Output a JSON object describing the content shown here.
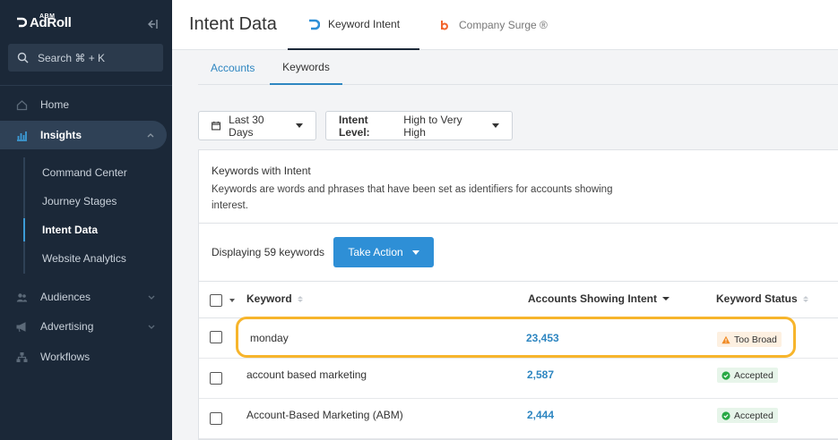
{
  "app": {
    "logo": "AdRoll",
    "logo_sub": "ABM"
  },
  "search": {
    "placeholder": "Search ⌘ + K"
  },
  "sidebar": {
    "items": [
      {
        "label": "Home",
        "icon": "home-icon"
      },
      {
        "label": "Insights",
        "icon": "insights-icon",
        "active": true
      },
      {
        "label": "Audiences",
        "icon": "audiences-icon"
      },
      {
        "label": "Advertising",
        "icon": "megaphone-icon"
      },
      {
        "label": "Workflows",
        "icon": "workflows-icon"
      }
    ],
    "sub_items": [
      {
        "label": "Command Center"
      },
      {
        "label": "Journey Stages"
      },
      {
        "label": "Intent Data",
        "active": true
      },
      {
        "label": "Website Analytics"
      }
    ]
  },
  "header": {
    "title": "Intent Data",
    "tabs": [
      {
        "label": "Keyword Intent",
        "active": true
      },
      {
        "label": "Company Surge ®"
      }
    ]
  },
  "subtabs": [
    {
      "label": "Accounts"
    },
    {
      "label": "Keywords",
      "active": true
    }
  ],
  "filters": {
    "date": "Last 30 Days",
    "intent_label": "Intent Level:",
    "intent_value": "High to Very High"
  },
  "panel": {
    "title": "Keywords with Intent",
    "description": "Keywords are words and phrases that have been set as identifiers for accounts showing interest.",
    "display_text": "Displaying 59 keywords",
    "action_label": "Take Action"
  },
  "table": {
    "columns": [
      "Keyword",
      "Accounts Showing Intent",
      "Keyword Status"
    ],
    "rows": [
      {
        "keyword": "monday",
        "count": "23,453",
        "status": "Too Broad",
        "status_type": "warn"
      },
      {
        "keyword": "account based marketing",
        "count": "2,587",
        "status": "Accepted",
        "status_type": "ok"
      },
      {
        "keyword": "Account-Based Marketing (ABM)",
        "count": "2,444",
        "status": "Accepted",
        "status_type": "ok"
      }
    ]
  },
  "colors": {
    "accent": "#2e86c1",
    "sidebar": "#1b2838",
    "highlight": "#f7b52c"
  }
}
